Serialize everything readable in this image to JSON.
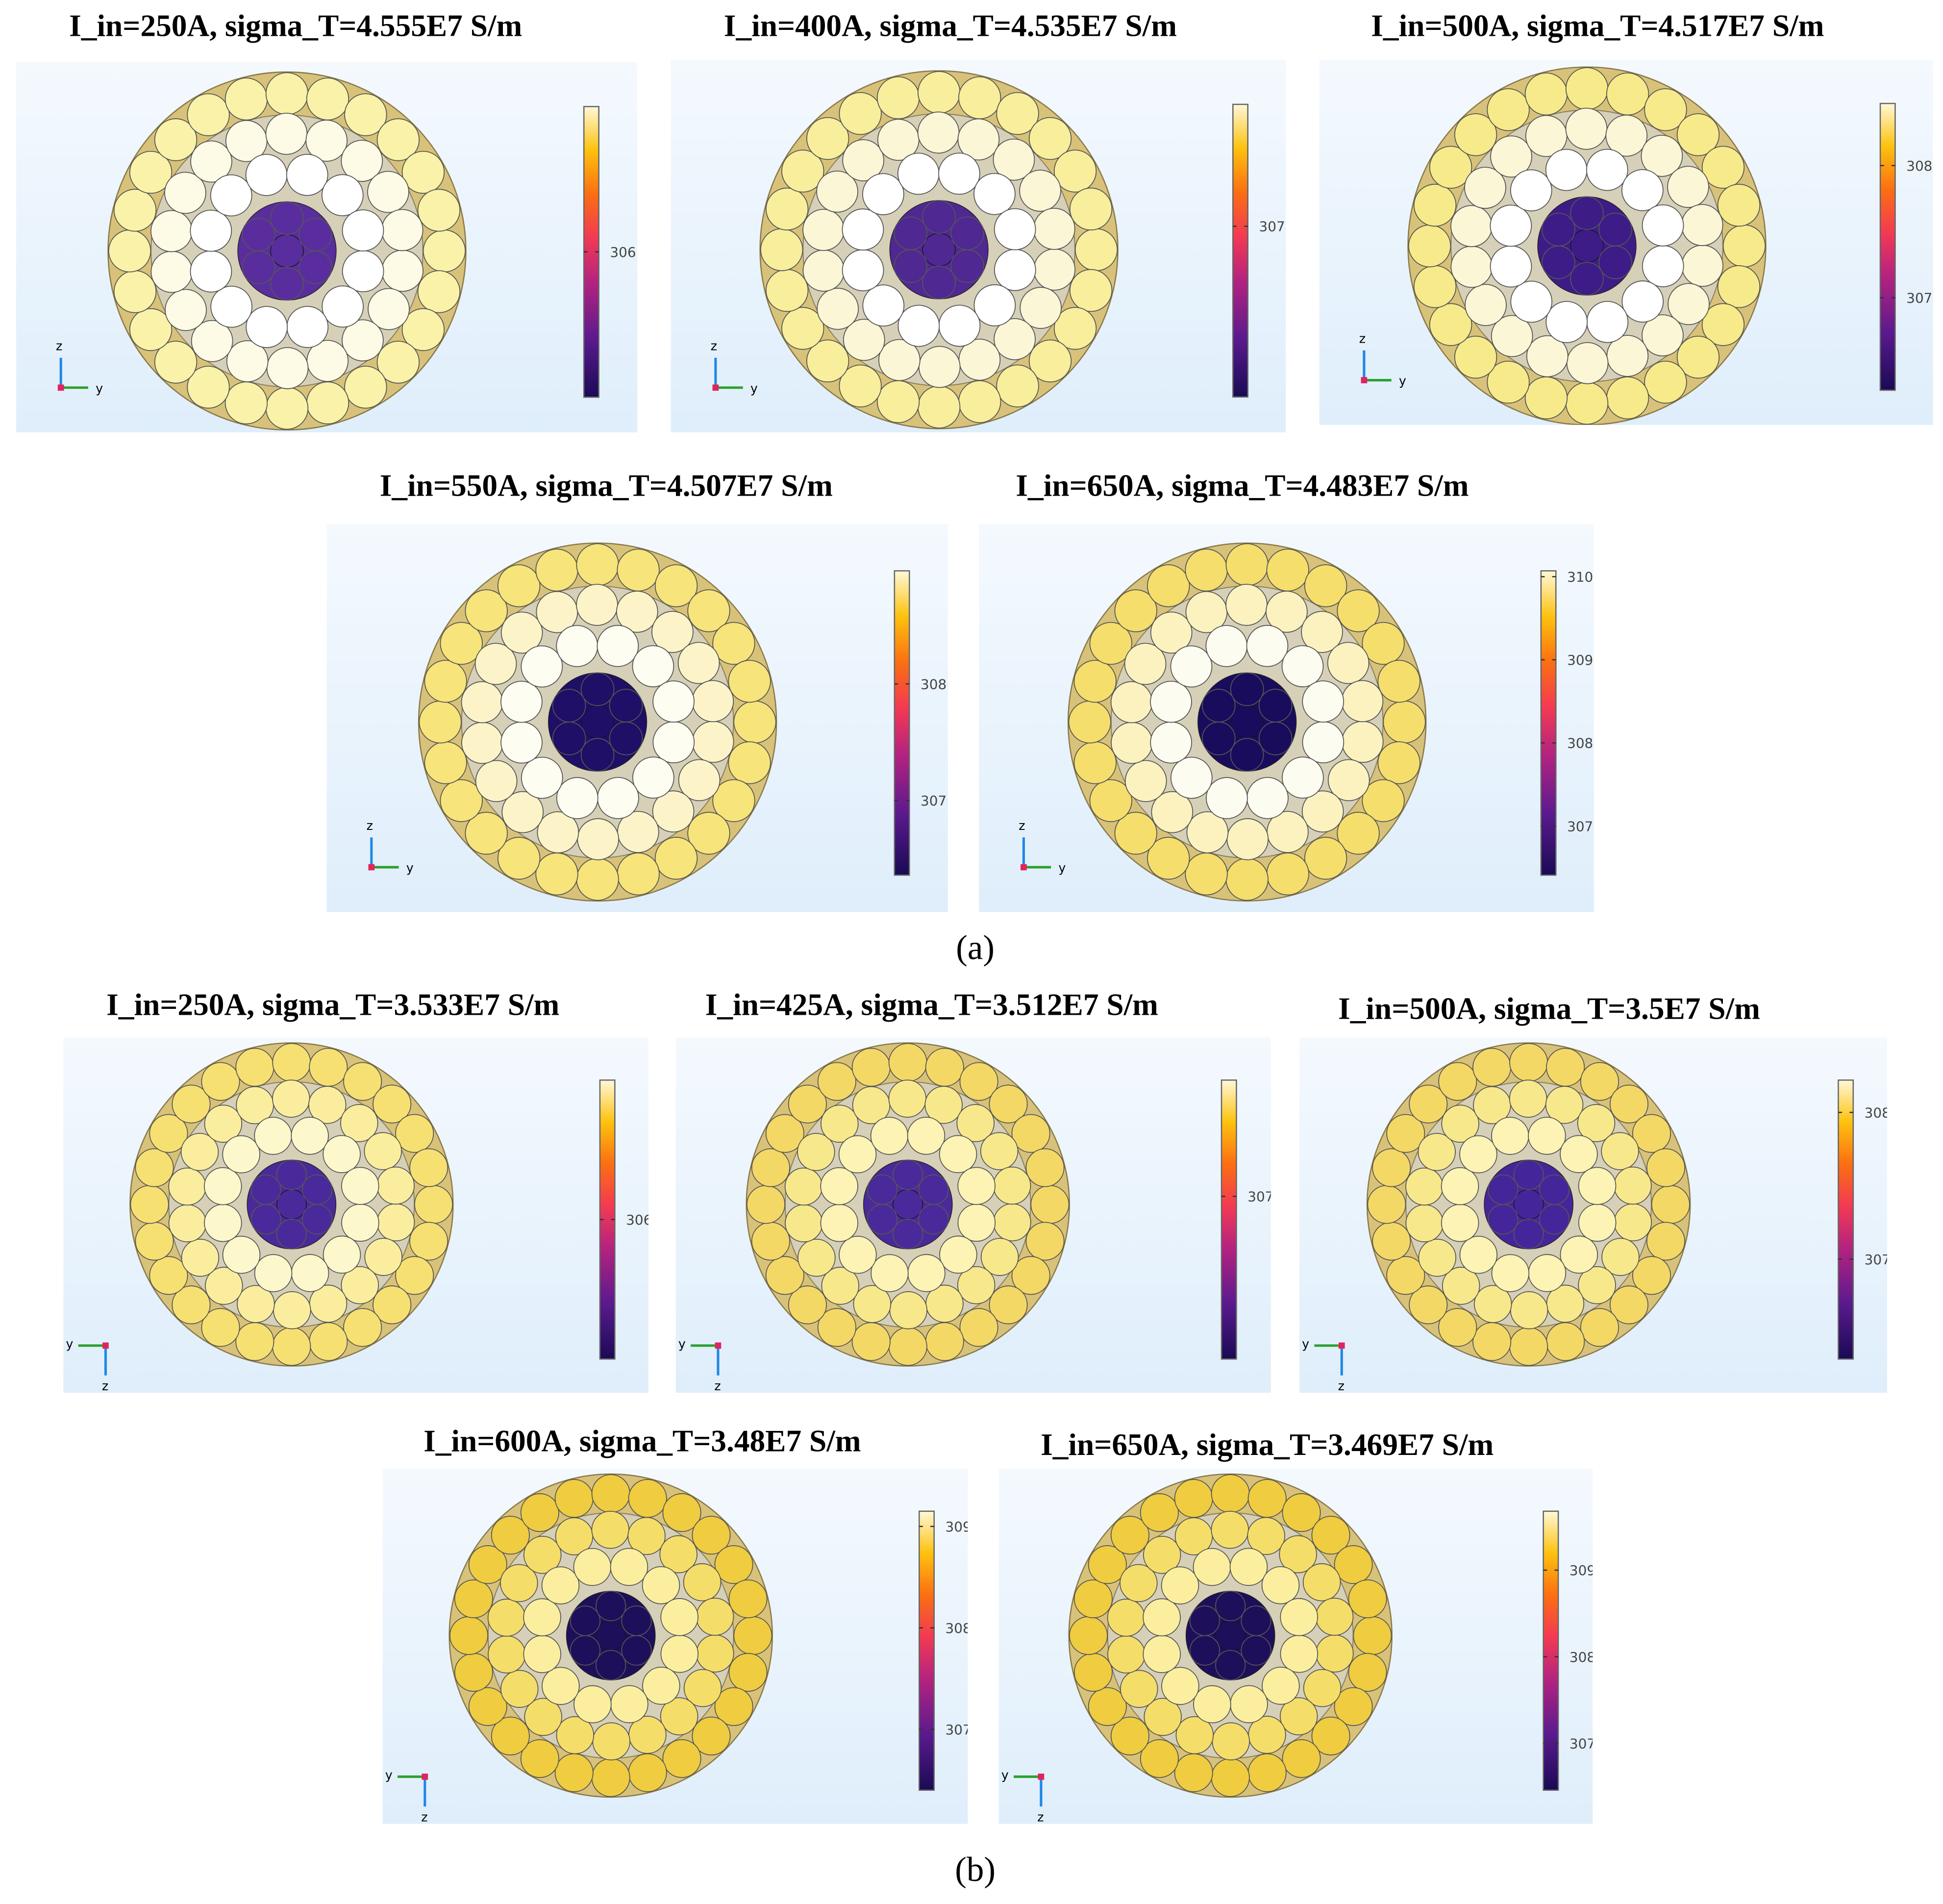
{
  "figure": {
    "groups": [
      {
        "label": "(a)",
        "axes_orientation": "z-up-y-right",
        "panels": [
          {
            "title": "I_in=250A, sigma_T=4.555E7 S/m",
            "colorbar": {
              "range": [
                305.4,
                306.6
              ],
              "ticks": [
                "306"
              ]
            },
            "strand_colors": {
              "core": "#5a2d9e",
              "ring1": "#ffffff",
              "ring2": "#fdfbe6",
              "ring3": "#f9f2a8"
            }
          },
          {
            "title": "I_in=400A, sigma_T=4.535E7 S/m",
            "colorbar": {
              "range": [
                306.3,
                307.5
              ],
              "ticks": [
                "307"
              ]
            },
            "strand_colors": {
              "core": "#4f2892",
              "ring1": "#ffffff",
              "ring2": "#fbf6d6",
              "ring3": "#f8ee9c"
            }
          },
          {
            "title": "I_in=500A, sigma_T=4.517E7 S/m",
            "colorbar": {
              "range": [
                306.3,
                308.47
              ],
              "ticks": [
                "308",
                "307"
              ]
            },
            "strand_colors": {
              "core": "#3d1c87",
              "ring1": "#ffffff",
              "ring2": "#fbf6d6",
              "ring3": "#f7ea8a"
            }
          },
          {
            "title": "I_in=550A, sigma_T=4.507E7 S/m",
            "colorbar": {
              "range": [
                306.36,
                308.97
              ],
              "ticks": [
                "308",
                "307"
              ]
            },
            "strand_colors": {
              "core": "#1f0f66",
              "ring1": "#fefdf2",
              "ring2": "#fcf4c8",
              "ring3": "#f7e47a"
            }
          },
          {
            "title": "I_in=650A, sigma_T=4.483E7 S/m",
            "colorbar": {
              "range": [
                306.41,
                310.07
              ],
              "ticks": [
                "310",
                "309",
                "308",
                "307"
              ]
            },
            "strand_colors": {
              "core": "#1a0c5c",
              "ring1": "#fdfcf0",
              "ring2": "#fbf2c0",
              "ring3": "#f5de6c"
            }
          }
        ]
      },
      {
        "label": "(b)",
        "axes_orientation": "y-left-z-down",
        "panels": [
          {
            "title": "I_in=250A, sigma_T=3.533E7 S/m",
            "colorbar": {
              "range": [
                305.4,
                306.6
              ],
              "ticks": [
                "306"
              ]
            },
            "strand_colors": {
              "core": "#4a2a9a",
              "ring1": "#fdf8cc",
              "ring2": "#faee9e",
              "ring3": "#f7e072"
            }
          },
          {
            "title": "I_in=425A, sigma_T=3.512E7 S/m",
            "colorbar": {
              "range": [
                306.3,
                307.5
              ],
              "ticks": [
                "307"
              ]
            },
            "strand_colors": {
              "core": "#4a2a9a",
              "ring1": "#fcf3b4",
              "ring2": "#f8e88c",
              "ring3": "#f4d866"
            }
          },
          {
            "title": "I_in=500A, sigma_T=3.5E7 S/m",
            "colorbar": {
              "range": [
                306.32,
                308.22
              ],
              "ticks": [
                "308",
                "307"
              ]
            },
            "strand_colors": {
              "core": "#45269a",
              "ring1": "#fcf3b4",
              "ring2": "#f8e88c",
              "ring3": "#f4d866"
            }
          },
          {
            "title": "I_in=600A, sigma_T=3.48E7 S/m",
            "colorbar": {
              "range": [
                306.4,
                309.15
              ],
              "ticks": [
                "309",
                "308",
                "307"
              ]
            },
            "strand_colors": {
              "core": "#1e0f5a",
              "ring1": "#fbef9f",
              "ring2": "#f5dd6a",
              "ring3": "#efcc40"
            }
          },
          {
            "title": "I_in=650A, sigma_T=3.469E7 S/m",
            "colorbar": {
              "range": [
                306.46,
                309.68
              ],
              "ticks": [
                "309",
                "308",
                "307"
              ]
            },
            "strand_colors": {
              "core": "#1e0f5a",
              "ring1": "#fbef9f",
              "ring2": "#f5dd6a",
              "ring3": "#efcc40"
            }
          }
        ]
      }
    ],
    "axis_labels": {
      "y": "y",
      "z": "z"
    }
  }
}
